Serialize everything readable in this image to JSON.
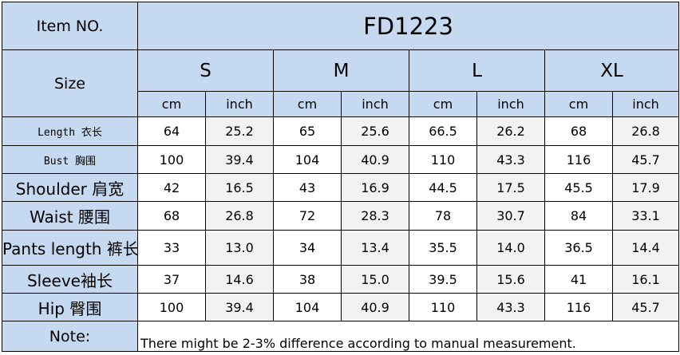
{
  "header": {
    "item_label": "Item NO.",
    "item_value": "FD1223",
    "size_label": "Size",
    "sizes": [
      "S",
      "M",
      "L",
      "XL"
    ],
    "unit_cm": "cm",
    "unit_inch": "inch"
  },
  "rows": [
    {
      "label": "Length 衣长",
      "values": [
        "64",
        "25.2",
        "65",
        "25.6",
        "66.5",
        "26.2",
        "68",
        "26.8"
      ]
    },
    {
      "label": "Bust  胸围",
      "values": [
        "100",
        "39.4",
        "104",
        "40.9",
        "110",
        "43.3",
        "116",
        "45.7"
      ]
    },
    {
      "label": "Shoulder 肩宽",
      "values": [
        "42",
        "16.5",
        "43",
        "16.9",
        "44.5",
        "17.5",
        "45.5",
        "17.9"
      ]
    },
    {
      "label": "Waist 腰围",
      "values": [
        "68",
        "26.8",
        "72",
        "28.3",
        "78",
        "30.7",
        "84",
        "33.1"
      ]
    },
    {
      "label": "Pants length 裤长",
      "values": [
        "33",
        "13.0",
        "34",
        "13.4",
        "35.5",
        "14.0",
        "36.5",
        "14.4"
      ]
    },
    {
      "label": "Sleeve袖长",
      "values": [
        "37",
        "14.6",
        "38",
        "15.0",
        "39.5",
        "15.6",
        "41",
        "16.1"
      ]
    },
    {
      "label": "Hip 臀围",
      "values": [
        "100",
        "39.4",
        "104",
        "40.9",
        "110",
        "43.3",
        "116",
        "45.7"
      ]
    }
  ],
  "note": {
    "label": "Note:",
    "text": "There might be 2-3% difference according to manual measurement."
  },
  "colors": {
    "header_fill": "#c5d9f1",
    "alt_column_fill": "#f2f2f2",
    "border": "#000000"
  }
}
